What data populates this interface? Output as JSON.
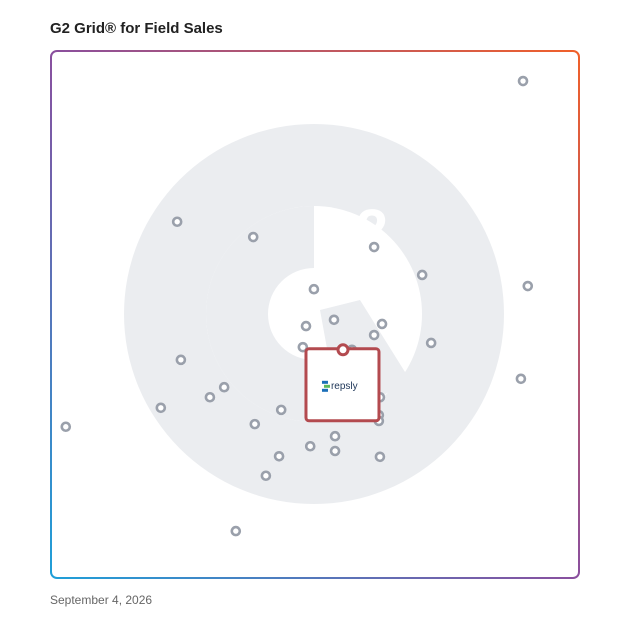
{
  "chart_data": {
    "type": "scatter",
    "title": "G2 Grid® for Field Sales",
    "date": "September 4, 2026",
    "xlim": [
      0,
      100
    ],
    "ylim": [
      0,
      100
    ],
    "color": "#9aa0ab",
    "x": [
      89.4,
      23.9,
      38.3,
      61.2,
      70.3,
      90.3,
      49.8,
      48.3,
      53.6,
      62.7,
      61.2,
      47.7,
      57.0,
      72.0,
      24.6,
      89.0,
      32.8,
      30.1,
      20.8,
      62.3,
      43.6,
      62.1,
      62.1,
      2.8,
      38.6,
      53.8,
      49.1,
      53.8,
      62.3,
      43.2,
      40.7,
      35.0
    ],
    "y": [
      94.3,
      67.6,
      64.7,
      62.8,
      57.5,
      55.4,
      54.8,
      47.8,
      49.0,
      48.2,
      46.1,
      43.8,
      43.3,
      44.6,
      41.4,
      37.8,
      36.2,
      34.3,
      32.3,
      34.3,
      31.9,
      30.9,
      29.8,
      28.7,
      29.2,
      26.9,
      25.0,
      24.1,
      23.0,
      23.1,
      19.4,
      8.9
    ],
    "highlight": {
      "name": "repsly",
      "x": 55.3,
      "y": 43.3,
      "color": "#b34a4f"
    }
  }
}
